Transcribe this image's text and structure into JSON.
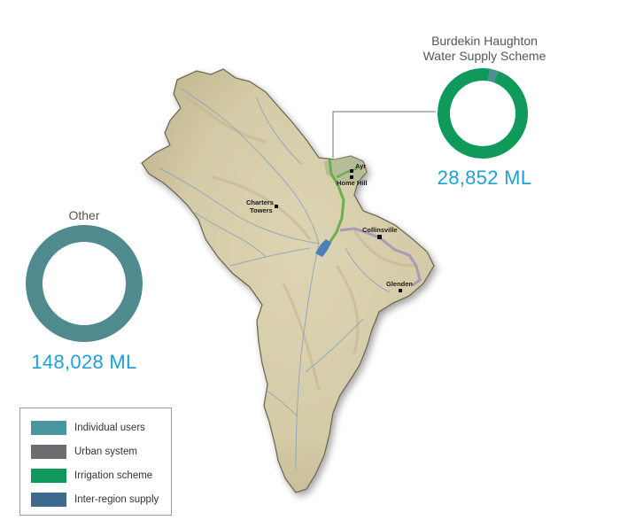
{
  "towns": [
    {
      "id": "ayr",
      "label": "Ayr"
    },
    {
      "id": "home-hill",
      "label": "Home Hill"
    },
    {
      "id": "charters-towers",
      "label_lines": [
        "Charters",
        "Towers"
      ]
    },
    {
      "id": "collinsville",
      "label": "Collinsville"
    },
    {
      "id": "glenden",
      "label": "Glenden"
    }
  ],
  "schemes": [
    {
      "id": "burdekin",
      "title_lines": [
        "Burdekin Haughton",
        "Water Supply Scheme"
      ],
      "value_label": "28,852 ML",
      "breakdown": [
        {
          "category": "Irrigation scheme",
          "share": 0.97,
          "color": "#0f9a5c"
        },
        {
          "category": "Individual users",
          "share": 0.03,
          "color": "#4f8e93"
        }
      ]
    },
    {
      "id": "other",
      "title_lines": [
        "Other"
      ],
      "value_label": "148,028 ML",
      "breakdown": [
        {
          "category": "Individual users",
          "share": 1.0,
          "color": "#4e8a8e"
        }
      ]
    }
  ],
  "legend": {
    "items": [
      {
        "label": "Individual users",
        "color": "#4a969f"
      },
      {
        "label": "Urban system",
        "color": "#6b6d70"
      },
      {
        "label": "Irrigation scheme",
        "color": "#0f9a5c"
      },
      {
        "label": "Inter-region supply",
        "color": "#3b6a8d"
      }
    ]
  },
  "map_colors": {
    "terrain": "#d9d0ae",
    "terrain_shade": "#c8bf9b",
    "border": "#6f6a55",
    "rivers": "#8aa6c2",
    "irrigation_channel": "#6fae4d",
    "pipeline": "#a99ab9",
    "reservoir": "#4a7fb8",
    "leader_line": "#707070"
  }
}
